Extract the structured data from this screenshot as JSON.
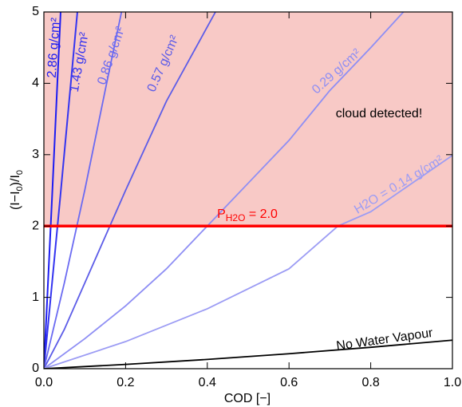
{
  "chart_data": {
    "type": "line",
    "xlabel": "COD [−]",
    "ylabel_parts": [
      "(I−I",
      "0",
      ")/I",
      "0"
    ],
    "xlim": [
      0,
      1
    ],
    "ylim": [
      0,
      5
    ],
    "xticks": [
      {
        "value": 0,
        "label": "0.0"
      },
      0.2,
      0.4,
      0.6,
      0.8,
      {
        "value": 1,
        "label": "1.0"
      }
    ],
    "yticks": [
      0,
      1,
      2,
      3,
      4,
      5
    ],
    "region": {
      "from": 2,
      "color": "#f8c9c6",
      "label": "cloud detected!"
    },
    "threshold": {
      "value": 2,
      "color": "#ff0000",
      "label_main": "P",
      "label_sub": "H2O",
      "label_rest": " = 2.0"
    },
    "series": [
      {
        "name": "2.86 g/cm²",
        "color": "#1c1cf2",
        "x": [
          0,
          0.02,
          0.041
        ],
        "values": [
          0,
          2.4,
          5
        ]
      },
      {
        "name": "1.43 g/cm²",
        "color": "#3434f0",
        "x": [
          0,
          0.04,
          0.082
        ],
        "values": [
          0,
          2.4,
          5
        ]
      },
      {
        "name": "0.86 g/cm²",
        "color": "#6a6af2",
        "x": [
          0,
          0.05,
          0.1,
          0.15,
          0.19
        ],
        "values": [
          0,
          1.2,
          2.5,
          3.9,
          5
        ]
      },
      {
        "name": "0.57 g/cm²",
        "color": "#5c5ce8",
        "x": [
          0,
          0.05,
          0.1,
          0.15,
          0.2,
          0.3,
          0.42
        ],
        "values": [
          0,
          0.55,
          1.2,
          1.85,
          2.5,
          3.75,
          5
        ]
      },
      {
        "name": "0.29 g/cm²",
        "color": "#8e8ef4",
        "x": [
          0,
          0.1,
          0.2,
          0.3,
          0.4,
          0.5,
          0.6,
          0.7,
          0.8,
          0.88
        ],
        "values": [
          0,
          0.42,
          0.88,
          1.4,
          2.0,
          2.6,
          3.2,
          3.9,
          4.5,
          5
        ]
      },
      {
        "name": "H2O = 0.14 g/cm²",
        "color": "#9c9cf4",
        "x": [
          0,
          0.2,
          0.4,
          0.6,
          0.72,
          0.8,
          1
        ],
        "values": [
          0,
          0.38,
          0.84,
          1.4,
          2.0,
          2.2,
          2.99
        ]
      },
      {
        "name": "No Water Vapour",
        "color": "#000000",
        "x": [
          0,
          0.2,
          0.4,
          0.6,
          0.8,
          1
        ],
        "values": [
          0,
          0.06,
          0.13,
          0.21,
          0.3,
          0.4
        ]
      }
    ]
  }
}
